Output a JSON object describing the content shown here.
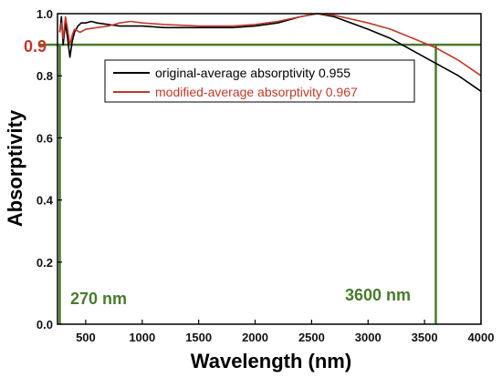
{
  "chart_data": {
    "type": "line",
    "xlabel": "Wavelength (nm)",
    "ylabel": "Absorptivity",
    "xlim": [
      250,
      4000
    ],
    "ylim": [
      0,
      1.0
    ],
    "x_ticks": [
      500,
      1000,
      1500,
      2000,
      2500,
      3000,
      3500,
      4000
    ],
    "x_tick_labels": [
      "500",
      "1000",
      "1500",
      "2000",
      "2500",
      "3000",
      "3500",
      "4000"
    ],
    "y_ticks": [
      0,
      0.2,
      0.4,
      0.6,
      0.8,
      1.0
    ],
    "y_tick_labels": [
      "0.0",
      "0.2",
      "0.4",
      "0.6",
      "0.8",
      "1.0"
    ],
    "legend_position": "top-right",
    "series": [
      {
        "name": "original-average absorptivity 0.955",
        "color": "#000000",
        "x": [
          270,
          285,
          300,
          320,
          340,
          360,
          380,
          400,
          430,
          460,
          500,
          550,
          600,
          700,
          800,
          900,
          1000,
          1200,
          1500,
          1800,
          2000,
          2200,
          2400,
          2550,
          2700,
          3000,
          3200,
          3400,
          3600,
          3800,
          4000
        ],
        "y": [
          0.94,
          0.99,
          0.9,
          0.97,
          0.92,
          0.86,
          0.91,
          0.94,
          0.96,
          0.97,
          0.97,
          0.975,
          0.97,
          0.965,
          0.96,
          0.96,
          0.96,
          0.955,
          0.955,
          0.955,
          0.96,
          0.97,
          0.99,
          1.0,
          0.99,
          0.95,
          0.92,
          0.88,
          0.84,
          0.8,
          0.75
        ]
      },
      {
        "name": "modified-average absorptivity 0.967",
        "color": "#c0392b",
        "x": [
          270,
          285,
          300,
          320,
          340,
          360,
          380,
          400,
          450,
          500,
          600,
          700,
          800,
          900,
          1000,
          1200,
          1500,
          1800,
          2000,
          2200,
          2400,
          2550,
          2700,
          3000,
          3200,
          3400,
          3600,
          3800,
          4000
        ],
        "y": [
          0.94,
          0.97,
          0.92,
          0.99,
          0.95,
          0.9,
          0.93,
          0.95,
          0.94,
          0.95,
          0.955,
          0.96,
          0.97,
          0.975,
          0.97,
          0.965,
          0.96,
          0.96,
          0.965,
          0.975,
          0.99,
          1.0,
          0.995,
          0.97,
          0.95,
          0.92,
          0.89,
          0.85,
          0.8
        ]
      }
    ],
    "reference_lines": {
      "color": "#4a7a2e",
      "horizontal_y": 0.9,
      "vertical_x": [
        270,
        3600
      ]
    },
    "annotations": {
      "y_value_label": "0.9",
      "y_value_label_color": "#c0392b",
      "left_wavelength": "270 nm",
      "right_wavelength": "3600 nm",
      "wavelength_label_color": "#4a7a2e"
    }
  }
}
